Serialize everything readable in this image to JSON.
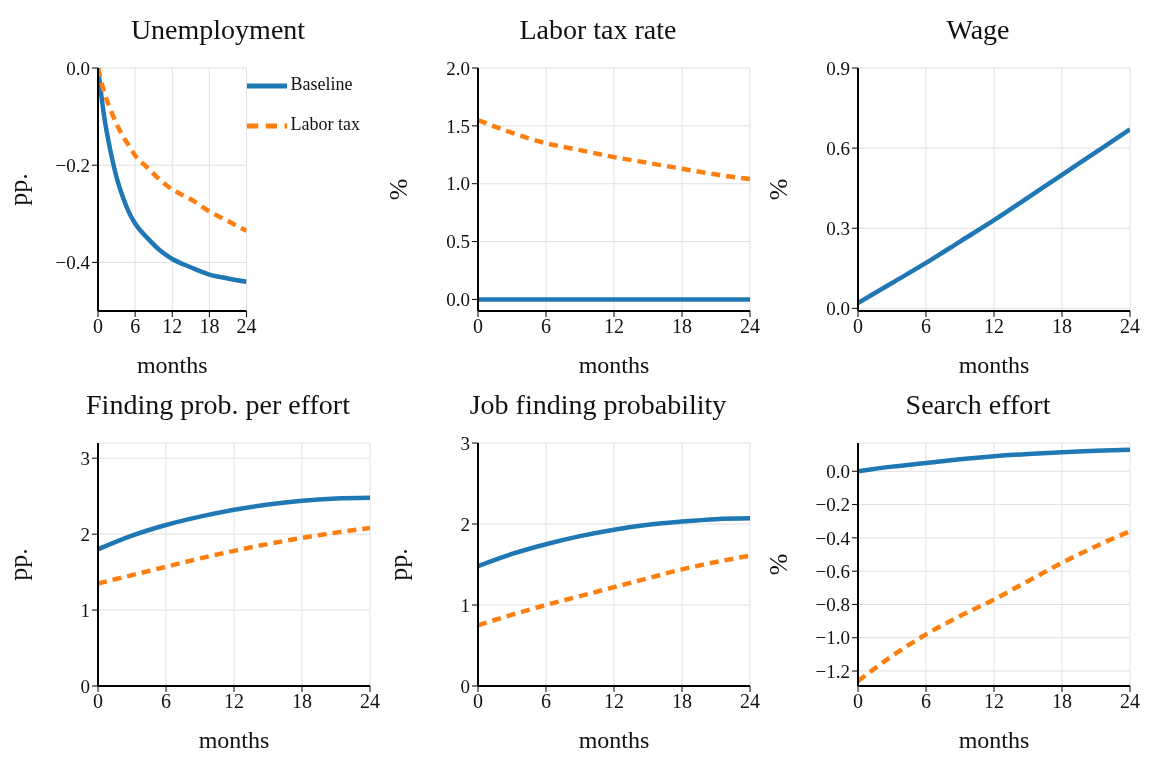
{
  "chart_data": [
    {
      "type": "line",
      "title": "Unemployment",
      "xlabel": "months",
      "ylabel": "pp.",
      "xlim": [
        0,
        24
      ],
      "xticks": [
        0,
        6,
        12,
        18,
        24
      ],
      "ylim": [
        -0.5,
        0
      ],
      "yticks": [
        {
          "value": -0.4,
          "label": "−0.4"
        },
        {
          "value": -0.2,
          "label": "−0.2"
        },
        {
          "value": 0,
          "label": "0.0"
        }
      ],
      "grid": true,
      "legend": "top right",
      "x": [
        0,
        1,
        2,
        3,
        4,
        5,
        6,
        8,
        10,
        12,
        15,
        18,
        21,
        24
      ],
      "series": [
        {
          "name": "Baseline",
          "color": "#1f77b4",
          "line_style": "solid",
          "values": [
            0,
            -0.1,
            -0.17,
            -0.225,
            -0.265,
            -0.297,
            -0.32,
            -0.35,
            -0.375,
            -0.393,
            -0.41,
            -0.425,
            -0.433,
            -0.44
          ]
        },
        {
          "name": "Labor tax",
          "color": "#ff7f0e",
          "line_style": "dashed",
          "values": [
            0,
            -0.05,
            -0.085,
            -0.115,
            -0.14,
            -0.16,
            -0.18,
            -0.205,
            -0.23,
            -0.25,
            -0.27,
            -0.295,
            -0.315,
            -0.335
          ]
        }
      ]
    },
    {
      "type": "line",
      "title": "Labor tax rate",
      "xlabel": "months",
      "ylabel": "%",
      "xlim": [
        0,
        24
      ],
      "xticks": [
        0,
        6,
        12,
        18,
        24
      ],
      "ylim": [
        -0.1,
        2
      ],
      "yticks": [
        {
          "value": 0,
          "label": "0.0"
        },
        0.5,
        {
          "value": 1,
          "label": "1.0"
        },
        1.5,
        {
          "value": 2,
          "label": "2.0"
        }
      ],
      "grid": true,
      "x": [
        0,
        3,
        6,
        9,
        12,
        15,
        18,
        21,
        24
      ],
      "series": [
        {
          "color": "#1f77b4",
          "line_style": "solid",
          "values": [
            0,
            0,
            0,
            0,
            0,
            0,
            0,
            0,
            0
          ]
        },
        {
          "color": "#ff7f0e",
          "line_style": "dashed",
          "values": [
            1.55,
            1.44,
            1.35,
            1.29,
            1.23,
            1.18,
            1.13,
            1.08,
            1.04
          ]
        }
      ]
    },
    {
      "type": "line",
      "title": "Wage",
      "xlabel": "months",
      "ylabel": "%",
      "xlim": [
        0,
        24
      ],
      "xticks": [
        0,
        6,
        12,
        18,
        24
      ],
      "ylim": [
        -0.01,
        0.9
      ],
      "yticks": [
        {
          "value": 0,
          "label": "0.0"
        },
        0.3,
        0.6,
        0.9
      ],
      "grid": true,
      "x": [
        0,
        3,
        6,
        9,
        12,
        15,
        18,
        21,
        24
      ],
      "series": [
        {
          "color": "#1f77b4",
          "line_style": "solid",
          "values": [
            0.02,
            0.095,
            0.17,
            0.25,
            0.33,
            0.415,
            0.5,
            0.585,
            0.67
          ]
        }
      ]
    },
    {
      "type": "line",
      "title": "Finding prob. per effort",
      "xlabel": "months",
      "ylabel": "pp.",
      "xlim": [
        0,
        24
      ],
      "xticks": [
        0,
        6,
        12,
        18,
        24
      ],
      "ylim": [
        0,
        3.2
      ],
      "yticks": [
        0,
        1,
        2,
        3
      ],
      "grid": true,
      "x": [
        0,
        3,
        6,
        9,
        12,
        15,
        18,
        21,
        24
      ],
      "series": [
        {
          "color": "#1f77b4",
          "line_style": "solid",
          "values": [
            1.8,
            1.98,
            2.12,
            2.23,
            2.32,
            2.39,
            2.44,
            2.47,
            2.48
          ]
        },
        {
          "color": "#ff7f0e",
          "line_style": "dashed",
          "values": [
            1.35,
            1.46,
            1.57,
            1.68,
            1.78,
            1.87,
            1.95,
            2.02,
            2.08
          ]
        }
      ]
    },
    {
      "type": "line",
      "title": "Job finding probability",
      "xlabel": "months",
      "ylabel": "pp.",
      "xlim": [
        0,
        24
      ],
      "xticks": [
        0,
        6,
        12,
        18,
        24
      ],
      "ylim": [
        0,
        3
      ],
      "yticks": [
        0,
        1,
        2,
        3
      ],
      "grid": true,
      "x": [
        0,
        3,
        6,
        9,
        12,
        15,
        18,
        21,
        24
      ],
      "series": [
        {
          "color": "#1f77b4",
          "line_style": "solid",
          "values": [
            1.48,
            1.63,
            1.75,
            1.85,
            1.93,
            1.99,
            2.03,
            2.06,
            2.07
          ]
        },
        {
          "color": "#ff7f0e",
          "line_style": "dashed",
          "values": [
            0.75,
            0.88,
            1.0,
            1.11,
            1.22,
            1.33,
            1.44,
            1.53,
            1.61
          ]
        }
      ]
    },
    {
      "type": "line",
      "title": "Search effort",
      "xlabel": "months",
      "ylabel": "%",
      "xlim": [
        0,
        24
      ],
      "xticks": [
        0,
        6,
        12,
        18,
        24
      ],
      "ylim": [
        -1.29,
        0.17
      ],
      "yticks": [
        {
          "value": -1.2,
          "label": "−1.2"
        },
        {
          "value": -1,
          "label": "−1.0"
        },
        {
          "value": -0.8,
          "label": "−0.8"
        },
        {
          "value": -0.6,
          "label": "−0.6"
        },
        {
          "value": -0.4,
          "label": "−0.4"
        },
        {
          "value": -0.2,
          "label": "−0.2"
        },
        {
          "value": 0,
          "label": "0.0"
        }
      ],
      "grid": true,
      "x": [
        0,
        3,
        6,
        9,
        12,
        15,
        18,
        21,
        24
      ],
      "series": [
        {
          "color": "#1f77b4",
          "line_style": "solid",
          "values": [
            0,
            0.028,
            0.05,
            0.072,
            0.09,
            0.104,
            0.115,
            0.124,
            0.13
          ]
        },
        {
          "color": "#ff7f0e",
          "line_style": "dashed",
          "values": [
            -1.26,
            -1.11,
            -0.98,
            -0.87,
            -0.77,
            -0.66,
            -0.55,
            -0.45,
            -0.36
          ]
        }
      ]
    }
  ]
}
